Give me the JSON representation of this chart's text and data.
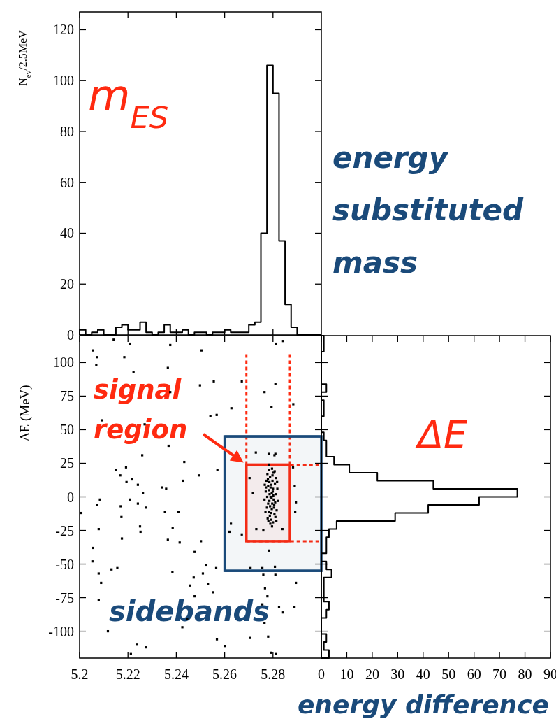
{
  "chart_data": [
    {
      "type": "histogram",
      "ylabel": "N$_{ev}$/2.5MeV",
      "color": "#000000",
      "bins": [
        5.2,
        5.2025,
        5.205,
        5.2075,
        5.21,
        5.2125,
        5.215,
        5.2175,
        5.22,
        5.2225,
        5.225,
        5.2275,
        5.23,
        5.2325,
        5.235,
        5.2375,
        5.24,
        5.2425,
        5.245,
        5.2475,
        5.25,
        5.2525,
        5.255,
        5.2575,
        5.26,
        5.2625,
        5.265,
        5.2675,
        5.27,
        5.2725,
        5.275,
        5.2775,
        5.28,
        5.2825,
        5.285,
        5.2875,
        5.29,
        5.2925,
        5.295,
        5.2975,
        5.3
      ],
      "values": [
        2,
        0,
        1,
        2,
        0,
        0,
        3,
        4,
        2,
        2,
        5,
        1,
        0,
        1,
        4,
        1,
        1,
        2,
        0,
        1,
        1,
        0,
        1,
        1,
        2,
        1,
        1,
        1,
        4,
        5,
        40,
        106,
        95,
        37,
        12,
        3,
        0,
        0,
        0,
        0
      ],
      "xlim": [
        5.2,
        5.3
      ],
      "xticks": [
        5.2,
        5.22,
        5.24,
        5.26,
        5.28
      ],
      "ylim": [
        0,
        127
      ],
      "yticks": [
        0,
        20,
        40,
        60,
        80,
        100,
        120
      ],
      "tick_labels": "y",
      "annotations": [
        "m$_{ES}$",
        "energy substituted mass"
      ]
    },
    {
      "type": "scatter",
      "ylabel": "ΔE (MeV)",
      "color": "#000000",
      "marker": "square",
      "x": [
        5.2141,
        5.2209,
        5.2375,
        5.2813,
        5.2842,
        5.2055,
        5.2072,
        5.2069,
        5.2185,
        5.2504,
        5.2365,
        5.2223,
        5.2671,
        5.2498,
        5.2555,
        5.281,
        5.2375,
        5.2765,
        5.2884,
        5.2628,
        5.2794,
        5.2541,
        5.2567,
        5.2093,
        5.2269,
        5.2368,
        5.2259,
        5.2729,
        5.2782,
        5.281,
        5.2433,
        5.257,
        5.2151,
        5.2192,
        5.2168,
        5.2194,
        5.2217,
        5.2493,
        5.2241,
        5.2428,
        5.2341,
        5.2358,
        5.2703,
        5.289,
        5.2717,
        5.2262,
        5.2084,
        5.2072,
        5.2207,
        5.2241,
        5.217,
        5.2274,
        5.2353,
        5.2409,
        5.2007,
        5.2892,
        5.2895,
        5.2173,
        5.225,
        5.2252,
        5.2385,
        5.2079,
        5.2671,
        5.262,
        5.2626,
        5.2731,
        5.276,
        5.2839,
        5.2175,
        5.2365,
        5.2414,
        5.2502,
        5.2784,
        5.2055,
        5.2476,
        5.2053,
        5.2156,
        5.2132,
        5.2522,
        5.2565,
        5.2707,
        5.2756,
        5.2808,
        5.2079,
        5.2384,
        5.251,
        5.2472,
        5.2089,
        5.276,
        5.281,
        5.2895,
        5.2457,
        5.2531,
        5.2767,
        5.2553,
        5.2777,
        5.2079,
        5.2476,
        5.2445,
        5.2756,
        5.2825,
        5.2842,
        5.2889,
        5.2765,
        5.2425,
        5.2117,
        5.2705,
        5.278,
        5.2568,
        5.2238,
        5.2274,
        5.2602,
        5.2212,
        5.2791,
        5.2813,
        5.2883,
        5.2806,
        5.279,
        5.2795,
        5.2785,
        5.28,
        5.278,
        5.2805,
        5.2775,
        5.2798,
        5.2788,
        5.2802,
        5.2783,
        5.2792,
        5.281,
        5.2778,
        5.28,
        5.2815,
        5.2812,
        5.277,
        5.2765,
        5.2808,
        5.2785,
        5.2795,
        5.278,
        5.2803,
        5.279,
        5.2797,
        5.2786,
        5.2794,
        5.2799,
        5.2782,
        5.2806,
        5.2773,
        5.2818,
        5.2769,
        5.2791,
        5.2777,
        5.2812,
        5.2796,
        5.2788,
        5.2801,
        5.2783,
        5.2809,
        5.2776,
        5.2793,
        5.2787,
        5.2804,
        5.2779,
        5.2814,
        5.2798,
        5.2789,
        5.2771,
        5.282,
        5.2766,
        5.2817,
        5.2781,
        5.2807,
        5.2796,
        5.2784
      ],
      "values": [
        117,
        114,
        113,
        114,
        116,
        109,
        104,
        98,
        104,
        109,
        96,
        93,
        86,
        83,
        86,
        84,
        78,
        78,
        69,
        66,
        67,
        60,
        61,
        57,
        54,
        38,
        31,
        33,
        32,
        32,
        26,
        20,
        20,
        22,
        16,
        11,
        13,
        16,
        9,
        12,
        7,
        6,
        14,
        8,
        3,
        3,
        -2,
        -6,
        -2,
        -5,
        -7,
        -8,
        -11,
        -11,
        -12,
        -11,
        -4,
        -15,
        -22,
        -26,
        -23,
        -24,
        -28,
        -26,
        -20,
        -24,
        -25,
        -24,
        -31,
        -32,
        -34,
        -33,
        -40,
        -38,
        -41,
        -48,
        -53,
        -54,
        -51,
        -53,
        -53,
        -53,
        -52,
        -57,
        -56,
        -57,
        -60,
        -64,
        -58,
        -58,
        -64,
        -66,
        -65,
        -68,
        -71,
        -74,
        -77,
        -74,
        -91,
        -80,
        -82,
        -86,
        -82,
        -94,
        -97,
        -100,
        -105,
        -104,
        -106,
        -110,
        -112,
        -111,
        -117,
        -116,
        -117,
        22,
        31,
        0,
        3,
        -3,
        6,
        8,
        -6,
        -8,
        12,
        15,
        18,
        20,
        -12,
        -15,
        -16,
        -19,
        -10,
        2,
        4,
        -2,
        10,
        11,
        -9,
        -5,
        -2,
        7,
        -5,
        2,
        -1,
        4,
        -11,
        -13,
        12,
        6,
        -11,
        -17,
        17,
        14,
        21,
        -7,
        1,
        5,
        -4,
        0,
        9,
        -14,
        -8,
        13,
        -18,
        16,
        -20,
        7,
        -3,
        9,
        11,
        -18,
        19,
        -22,
        24
      ],
      "xlim": [
        5.2,
        5.3
      ],
      "xticks": [
        5.2,
        5.22,
        5.24,
        5.26,
        5.28
      ],
      "ylim": [
        -120,
        120
      ],
      "yticks": [
        -100,
        -75,
        -50,
        -25,
        0,
        25,
        50,
        75,
        100
      ],
      "bands": [
        {
          "axis": "x",
          "from": 5.269,
          "to": 5.287,
          "color": "#ff2a10"
        },
        {
          "axis": "x",
          "from": 5.26,
          "to": 5.3,
          "color": "#1a4a7a"
        }
      ],
      "ref_lines": [
        {
          "axis": "x",
          "value": 5.269,
          "color": "#ff2a10",
          "line_style": "dotted"
        },
        {
          "axis": "x",
          "value": 5.287,
          "color": "#ff2a10",
          "line_style": "dotted"
        },
        {
          "axis": "y",
          "value": 24,
          "color": "#ff2a10",
          "line_style": "dotted"
        },
        {
          "axis": "y",
          "value": -33,
          "color": "#ff2a10",
          "line_style": "dotted"
        },
        {
          "axis": "y",
          "value": 45,
          "color": "#1a4a7a",
          "line_style": "solid"
        },
        {
          "axis": "y",
          "value": -55,
          "color": "#1a4a7a",
          "line_style": "solid"
        }
      ],
      "annotations": [
        "signal region",
        "sidebands"
      ]
    },
    {
      "type": "histogram",
      "orientation": "horizontal",
      "color": "#000000",
      "bins": [
        -120,
        -114,
        -108,
        -102,
        -96,
        -90,
        -84,
        -78,
        -72,
        -66,
        -60,
        -54,
        -48,
        -42,
        -36,
        -30,
        -24,
        -18,
        -12,
        -6,
        0,
        6,
        12,
        18,
        24,
        30,
        36,
        42,
        48,
        54,
        60,
        66,
        72,
        78,
        84,
        90,
        96,
        102,
        108,
        114,
        120
      ],
      "values": [
        3,
        1,
        2,
        0,
        0,
        2,
        3,
        1,
        1,
        1,
        4,
        2,
        0,
        2,
        2,
        3,
        6,
        29,
        42,
        62,
        77,
        44,
        22,
        11,
        5,
        2,
        2,
        1,
        0,
        0,
        1,
        1,
        0,
        2,
        0,
        0,
        0,
        0,
        1,
        1
      ],
      "xlim": [
        0,
        90
      ],
      "xticks": [
        0,
        10,
        20,
        30,
        40,
        50,
        60,
        70,
        80,
        90
      ],
      "ylim": [
        -120,
        120
      ],
      "yticks": [
        -100,
        -75,
        -50,
        -25,
        0,
        25,
        50,
        75,
        100
      ],
      "tick_labels": "x",
      "annotations": [
        "ΔE",
        "energy difference"
      ]
    }
  ]
}
